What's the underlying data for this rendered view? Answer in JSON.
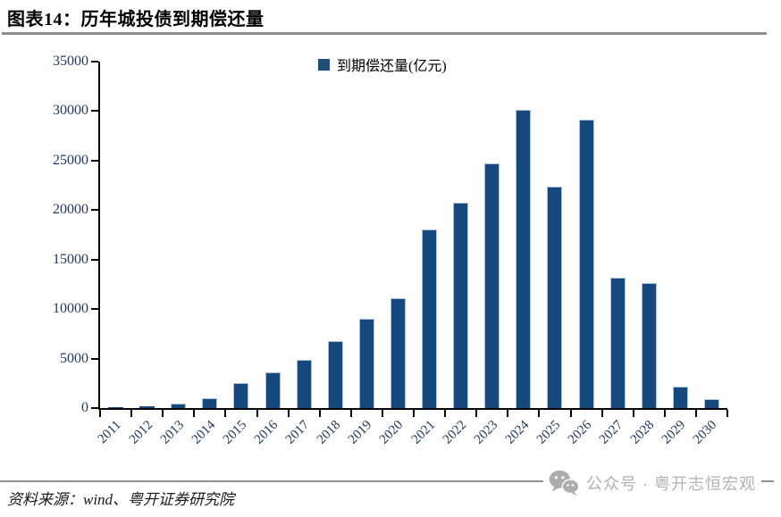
{
  "header": {
    "title": "图表14：历年城投债到期偿还量"
  },
  "legend": {
    "label": "到期偿还量(亿元)",
    "marker_color": "#1F4E79"
  },
  "chart_data": {
    "type": "bar",
    "title": "历年城投债到期偿还量",
    "series_name": "到期偿还量(亿元)",
    "categories": [
      "2011",
      "2012",
      "2013",
      "2014",
      "2015",
      "2016",
      "2017",
      "2018",
      "2019",
      "2020",
      "2021",
      "2022",
      "2023",
      "2024",
      "2025",
      "2026",
      "2027",
      "2028",
      "2029",
      "2030"
    ],
    "values": [
      60,
      180,
      420,
      980,
      2550,
      3600,
      4900,
      6750,
      9000,
      11100,
      18050,
      20750,
      24700,
      30100,
      22400,
      29100,
      13200,
      12650,
      2200,
      900
    ],
    "xlabel": "",
    "ylabel": "",
    "ylim": [
      0,
      35000
    ],
    "ytick_interval": 5000,
    "yticks": [
      0,
      5000,
      10000,
      15000,
      20000,
      25000,
      30000,
      35000
    ],
    "grid": false,
    "legend_position": "top-center",
    "bar_color": "#15497E",
    "bar_edge_color": "#A9C4E2",
    "axis_label_color": "#1F3864"
  },
  "footer": {
    "source": "资料来源：wind、粤开证券研究院",
    "watermark": {
      "icon": "wechat-icon",
      "text": "公众号 · 粤开志恒宏观"
    }
  },
  "colors": {
    "divider": "#8E8E8E",
    "axis": "#000000",
    "watermark_gray": "#B2B2B2"
  }
}
